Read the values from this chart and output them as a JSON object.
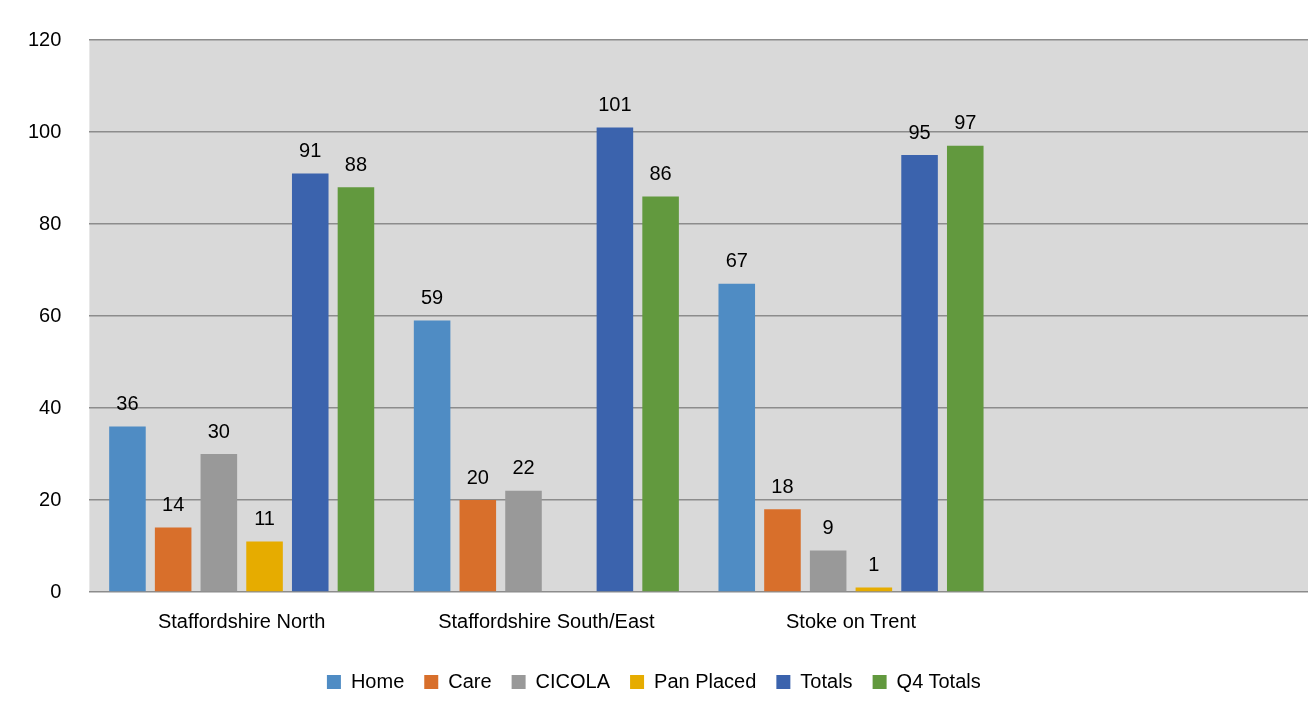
{
  "chart_data": {
    "type": "bar",
    "categories": [
      "Staffordshire North",
      "Staffordshire South/East",
      "Stoke on Trent",
      null
    ],
    "series": [
      {
        "name": "Home",
        "color": "#4f8cc4",
        "values": [
          36,
          59,
          67,
          null
        ]
      },
      {
        "name": "Care",
        "color": "#d86f2b",
        "values": [
          14,
          20,
          18,
          null
        ]
      },
      {
        "name": "CICOLA",
        "color": "#999999",
        "values": [
          30,
          22,
          9,
          null
        ]
      },
      {
        "name": "Pan Placed",
        "color": "#e6ac00",
        "values": [
          11,
          null,
          1,
          null
        ]
      },
      {
        "name": "Totals",
        "color": "#3b63ad",
        "values": [
          91,
          101,
          95,
          null
        ]
      },
      {
        "name": "Q4 Totals",
        "color": "#62993e",
        "values": [
          88,
          86,
          97,
          null
        ]
      }
    ],
    "ylim": [
      0,
      120
    ],
    "yticks": [
      0,
      20,
      40,
      60,
      80,
      100,
      120
    ],
    "grid": "y",
    "legend": "bottom",
    "data_labels": true
  }
}
